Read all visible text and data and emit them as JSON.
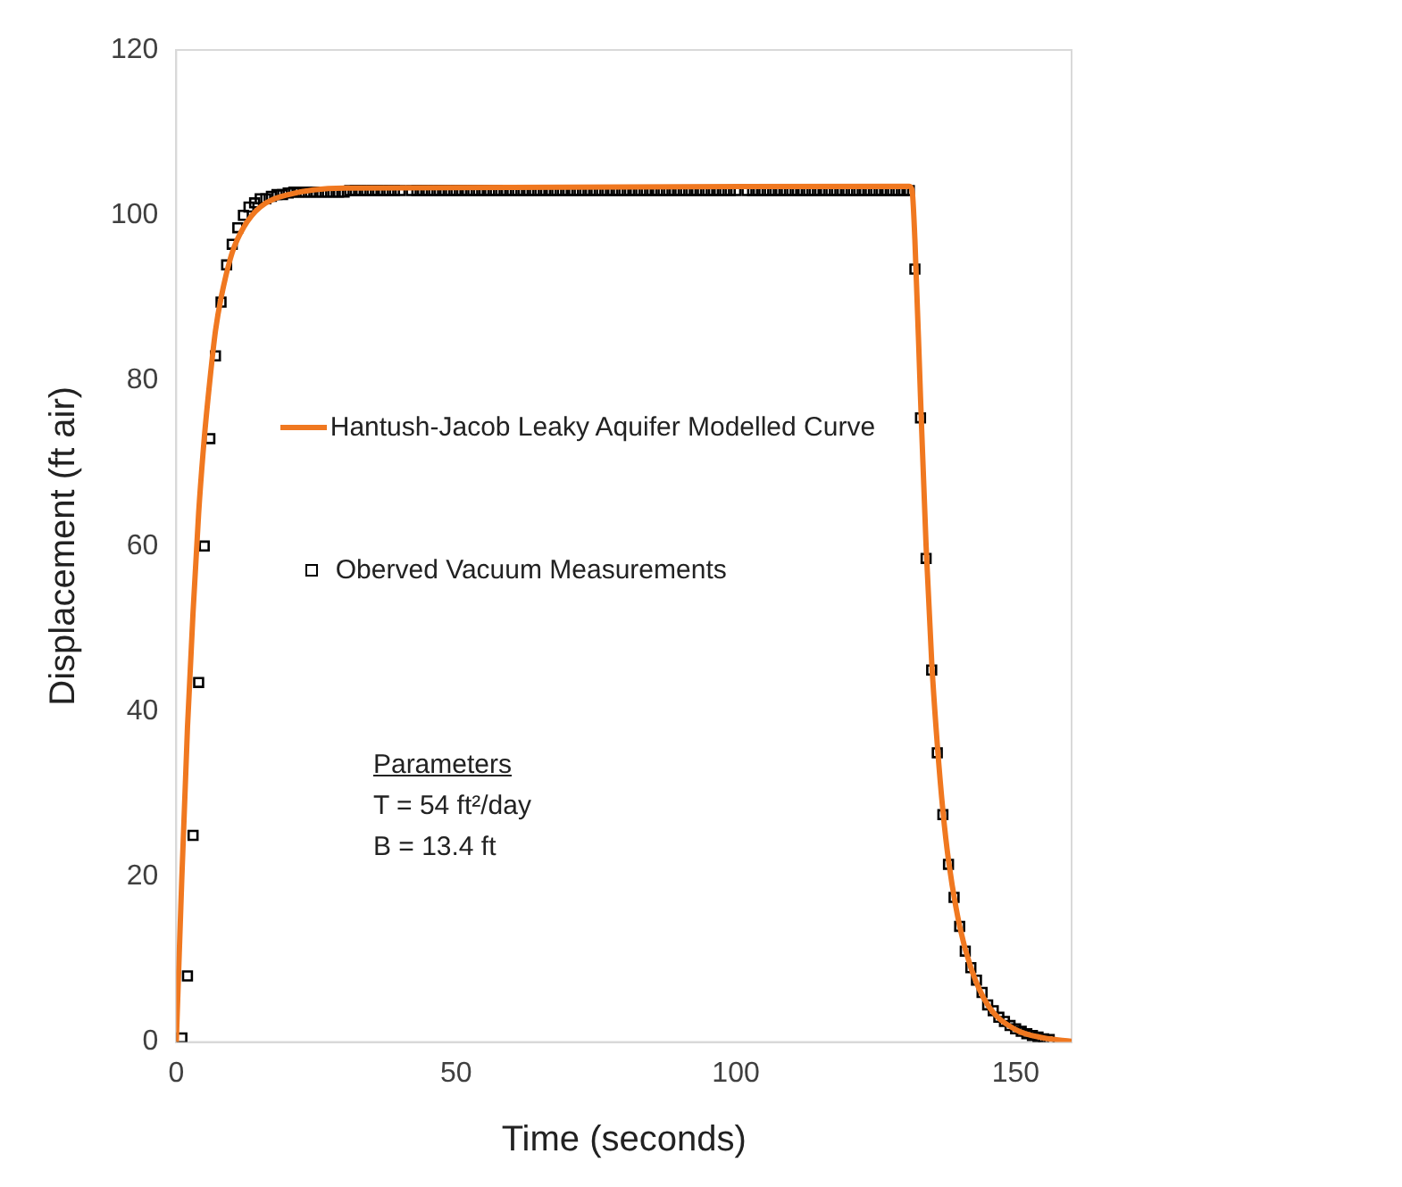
{
  "chart_data": {
    "type": "scatter",
    "xlabel": "Time (seconds)",
    "ylabel": "Displacement (ft air)",
    "xlim": [
      0,
      160
    ],
    "xticks": [
      0,
      50,
      100,
      150
    ],
    "ylim": [
      0,
      120
    ],
    "yticks": [
      0,
      20,
      40,
      60,
      80,
      100,
      120
    ],
    "grid": false,
    "legend": "left",
    "annotations": [
      "Parameters",
      "T = 54 ft²/day",
      "B = 13.4 ft"
    ],
    "series": [
      {
        "name": "Hantush-Jacob Leaky Aquifer Modelled Curve",
        "type": "line",
        "color": "#f07820",
        "marker": "none",
        "line_style": "solid",
        "x": [
          0,
          1,
          2,
          3,
          4,
          5,
          6,
          7,
          8,
          10,
          12,
          15,
          20,
          30,
          131,
          131.5,
          132,
          133,
          134,
          135,
          136,
          137,
          138,
          140,
          142,
          145,
          150,
          155,
          160
        ],
        "values": [
          0,
          20,
          38,
          52,
          64,
          73,
          80,
          86,
          90,
          95.5,
          98.5,
          101,
          102.5,
          103.3,
          103.5,
          103,
          97,
          78,
          60,
          46,
          36,
          28,
          22,
          14,
          9,
          4.5,
          1.5,
          0.5,
          0.1
        ]
      },
      {
        "name": "Oberved Vacuum Measurements",
        "type": "scatter",
        "color": "#000000",
        "marker": "square",
        "x": [
          1,
          2,
          3,
          4,
          5,
          6,
          7,
          8,
          9,
          10,
          11,
          12,
          13,
          14,
          15,
          16,
          17,
          18,
          19,
          20,
          21,
          22,
          23,
          24,
          25,
          26,
          27,
          28,
          29,
          30,
          31,
          32,
          33,
          34,
          35,
          36,
          37,
          38,
          39,
          40,
          42,
          43,
          44,
          45,
          46,
          47,
          48,
          49,
          50,
          51,
          52,
          53,
          54,
          55,
          56,
          57,
          58,
          59,
          60,
          61,
          62,
          63,
          64,
          65,
          66,
          67,
          68,
          69,
          70,
          71,
          72,
          73,
          74,
          75,
          76,
          77,
          78,
          79,
          80,
          81,
          82,
          83,
          84,
          85,
          86,
          87,
          88,
          89,
          90,
          91,
          92,
          93,
          94,
          95,
          96,
          97,
          98,
          99,
          100,
          102,
          103,
          104,
          105,
          106,
          107,
          108,
          109,
          110,
          111,
          112,
          113,
          114,
          115,
          116,
          117,
          118,
          119,
          120,
          121,
          122,
          123,
          124,
          125,
          126,
          127,
          128,
          129,
          130,
          131,
          132,
          133,
          134,
          135,
          136,
          137,
          138,
          139,
          140,
          141,
          142,
          143,
          144,
          145,
          146,
          147,
          148,
          149,
          150,
          151,
          152,
          153,
          154,
          155,
          156
        ],
        "values": [
          0.5,
          8,
          25,
          43.5,
          60,
          73,
          83,
          89.5,
          94,
          96.5,
          98.5,
          100,
          101,
          101.5,
          102,
          102,
          102.3,
          102.5,
          102.5,
          102.7,
          102.8,
          102.8,
          102.8,
          102.8,
          102.8,
          102.8,
          102.8,
          102.8,
          102.8,
          102.8,
          103,
          103,
          103,
          103,
          103,
          103,
          103,
          103,
          103,
          103,
          103,
          103,
          103,
          103,
          103,
          103,
          103,
          103,
          103,
          103,
          103,
          103,
          103,
          103,
          103,
          103,
          103,
          103,
          103,
          103,
          103,
          103,
          103,
          103,
          103,
          103,
          103,
          103,
          103,
          103,
          103,
          103,
          103,
          103,
          103,
          103,
          103,
          103,
          103,
          103,
          103,
          103,
          103,
          103,
          103,
          103,
          103,
          103,
          103,
          103,
          103,
          103,
          103,
          103,
          103,
          103,
          103,
          103,
          103,
          103,
          103,
          103,
          103,
          103,
          103,
          103,
          103,
          103,
          103,
          103,
          103,
          103,
          103,
          103,
          103,
          103,
          103,
          103,
          103,
          103,
          103,
          103,
          103,
          103,
          103,
          103,
          103,
          103,
          103,
          93.5,
          75.5,
          58.5,
          45,
          35,
          27.5,
          21.5,
          17.5,
          14,
          11,
          9,
          7.5,
          6,
          4.5,
          3.8,
          3,
          2.5,
          2,
          1.6,
          1.3,
          1,
          0.8,
          0.6,
          0.4,
          0.3
        ]
      }
    ]
  }
}
